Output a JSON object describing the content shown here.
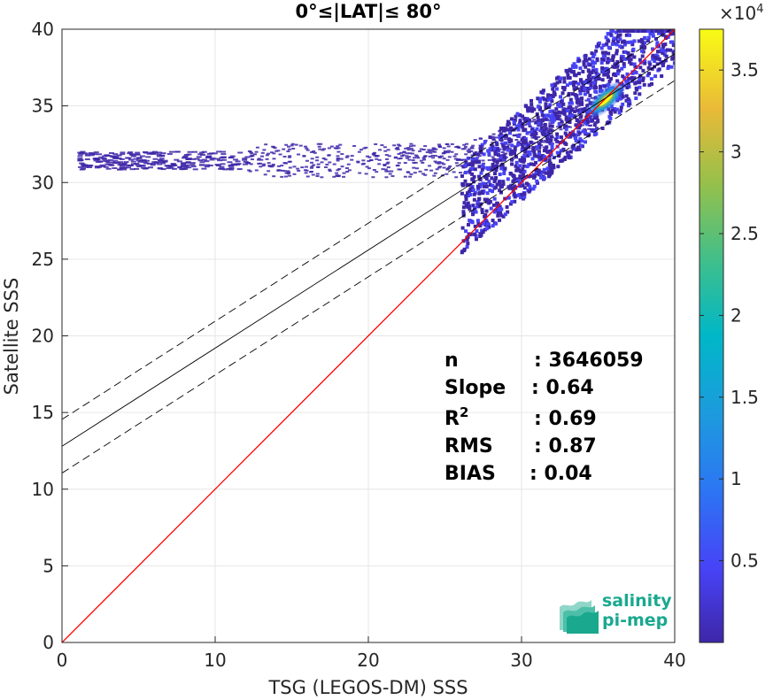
{
  "chart_data": {
    "type": "heatmap",
    "title": "0°≤|LAT|≤ 80°",
    "xlabel": "TSG (LEGOS-DM) SSS",
    "ylabel": "Satellite SSS",
    "xlim": [
      0,
      40
    ],
    "ylim": [
      0,
      40
    ],
    "xticks": [
      "0",
      "10",
      "20",
      "30",
      "40"
    ],
    "yticks": [
      "0",
      "5",
      "10",
      "15",
      "20",
      "25",
      "30",
      "35",
      "40"
    ],
    "grid": true,
    "colorbar": {
      "range": [
        0,
        37500
      ],
      "ticks": [
        "0.5",
        "1",
        "1.5",
        "2",
        "2.5",
        "3",
        "3.5"
      ],
      "tick_values": [
        5000,
        10000,
        15000,
        20000,
        25000,
        30000,
        35000
      ],
      "multiplier_base": "×10",
      "multiplier_exp": "4",
      "colormap": "parula"
    },
    "lines": [
      {
        "type": "identity",
        "color": "#ff0000",
        "points": [
          [
            0,
            0
          ],
          [
            40,
            40
          ]
        ]
      },
      {
        "type": "fit",
        "color": "#000000",
        "style": "solid",
        "points": [
          [
            0,
            12.8
          ],
          [
            40,
            38.4
          ]
        ]
      },
      {
        "type": "fit-upper",
        "color": "#000000",
        "style": "dashed",
        "points": [
          [
            0,
            14.55
          ],
          [
            40,
            40.15
          ]
        ]
      },
      {
        "type": "fit-lower",
        "color": "#000000",
        "style": "dashed",
        "points": [
          [
            0,
            11.05
          ],
          [
            40,
            36.65
          ]
        ]
      }
    ],
    "density_center": [
      35.5,
      35.4
    ],
    "stats": [
      {
        "label": "n",
        "value": ": 3646059"
      },
      {
        "label": "Slope",
        "value": ": 0.64"
      },
      {
        "label": "R",
        "sup": "2",
        "value": ": 0.69"
      },
      {
        "label": "RMS",
        "value": ": 0.87"
      },
      {
        "label": "BIAS",
        "value": ": 0.04"
      }
    ]
  },
  "logo": {
    "line1": "salinity",
    "line2": "pi-mep",
    "color": "#1aa88f"
  }
}
